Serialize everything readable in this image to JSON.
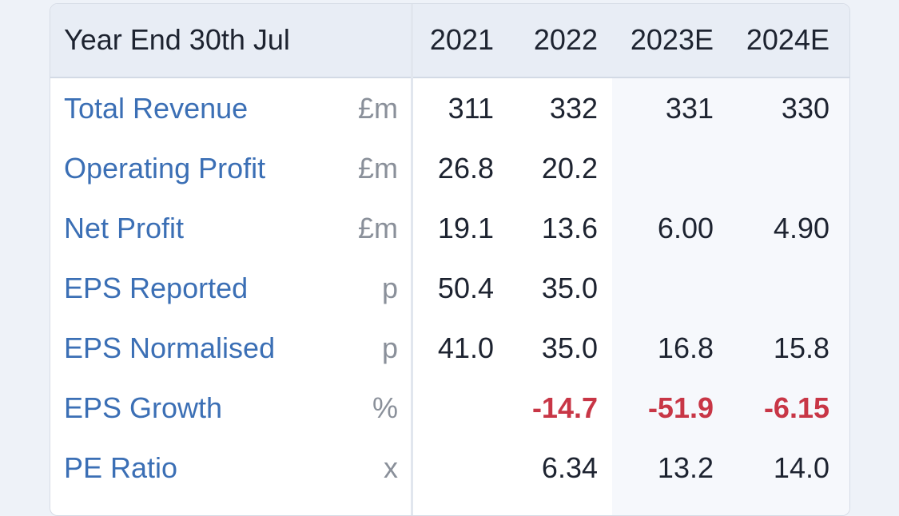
{
  "header": {
    "title": "Year End 30th Jul",
    "years": [
      "2021",
      "2022",
      "2023E",
      "2024E"
    ]
  },
  "rows": [
    {
      "label": "Total Revenue",
      "unit": "£m",
      "values": [
        "311",
        "332",
        "331",
        "330"
      ]
    },
    {
      "label": "Operating Profit",
      "unit": "£m",
      "values": [
        "26.8",
        "20.2",
        "",
        ""
      ]
    },
    {
      "label": "Net Profit",
      "unit": "£m",
      "values": [
        "19.1",
        "13.6",
        "6.00",
        "4.90"
      ]
    },
    {
      "label": "EPS Reported",
      "unit": "p",
      "values": [
        "50.4",
        "35.0",
        "",
        ""
      ]
    },
    {
      "label": "EPS Normalised",
      "unit": "p",
      "values": [
        "41.0",
        "35.0",
        "16.8",
        "15.8"
      ]
    },
    {
      "label": "EPS Growth",
      "unit": "%",
      "values": [
        "",
        "-14.7",
        "-51.9",
        "-6.15"
      ]
    },
    {
      "label": "PE Ratio",
      "unit": "x",
      "values": [
        "",
        "6.34",
        "13.2",
        "14.0"
      ]
    }
  ],
  "colors": {
    "label": "#3b6fb5",
    "negative": "#c83646",
    "header_bg": "#e8edf5"
  }
}
